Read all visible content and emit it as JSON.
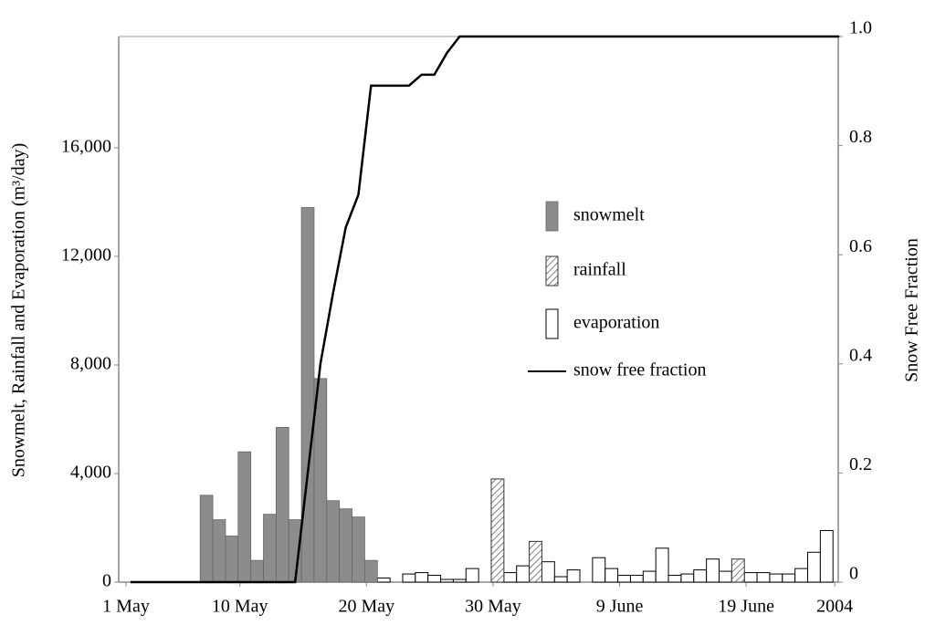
{
  "chart_data": {
    "type": "bar",
    "y_label": "Snowmelt, Rainfall and Evaporation (m³/day)",
    "y2_label": "Snow Free Fraction",
    "categories": [
      "1 May",
      null,
      null,
      null,
      null,
      null,
      null,
      null,
      null,
      "10 May",
      null,
      null,
      null,
      null,
      null,
      null,
      null,
      null,
      null,
      "20 May",
      null,
      null,
      null,
      null,
      null,
      null,
      null,
      null,
      null,
      "30 May",
      null,
      null,
      null,
      null,
      null,
      null,
      null,
      null,
      null,
      "9 June",
      null,
      null,
      null,
      null,
      null,
      null,
      null,
      null,
      null,
      "19 June",
      null,
      null,
      null,
      null,
      null,
      null,
      "2004"
    ],
    "ylim": [
      0,
      20100
    ],
    "yticks": [
      0,
      {
        "value": 4000,
        "label": "4,000"
      },
      {
        "value": 8000,
        "label": "8,000"
      },
      {
        "value": 12000,
        "label": "12,000"
      },
      {
        "value": 16000,
        "label": "16,000"
      }
    ],
    "y2lim": [
      0,
      1
    ],
    "y2ticks": [
      0,
      0.2,
      0.4,
      0.6,
      0.8,
      {
        "value": 1,
        "label": "1.0"
      }
    ],
    "series": [
      {
        "name": "snowmelt",
        "color": "#8c8c8c",
        "values": [
          0,
          0,
          0,
          0,
          0,
          0,
          3200,
          2300,
          1700,
          4800,
          800,
          2500,
          5700,
          2300,
          13800,
          7500,
          3000,
          2700,
          2400,
          800,
          0,
          0,
          0,
          0,
          0,
          0,
          0,
          0,
          0,
          0,
          0,
          0,
          0,
          0,
          0,
          0,
          0,
          0,
          0,
          0,
          0,
          0,
          0,
          0,
          0,
          0,
          0,
          0,
          0,
          0,
          0,
          0,
          0,
          0,
          0,
          0,
          0
        ]
      },
      {
        "name": "rainfall",
        "color": "#d9d9d9",
        "values": [
          0,
          0,
          0,
          0,
          0,
          0,
          0,
          0,
          0,
          0,
          0,
          0,
          0,
          0,
          0,
          0,
          0,
          0,
          0,
          0,
          0,
          0,
          0,
          0,
          0,
          0,
          0,
          0,
          0,
          3800,
          0,
          0,
          1500,
          0,
          0,
          0,
          0,
          0,
          0,
          0,
          0,
          0,
          0,
          0,
          0,
          0,
          0,
          0,
          850,
          0,
          0,
          0,
          0,
          0,
          0,
          0,
          0
        ]
      },
      {
        "name": "evaporation",
        "color": "#ffffff",
        "values": [
          0,
          0,
          0,
          0,
          0,
          0,
          0,
          0,
          0,
          0,
          0,
          0,
          0,
          0,
          0,
          0,
          0,
          0,
          450,
          100,
          150,
          0,
          300,
          350,
          250,
          100,
          100,
          500,
          0,
          100,
          350,
          600,
          400,
          750,
          200,
          450,
          0,
          900,
          500,
          250,
          250,
          400,
          1250,
          250,
          300,
          450,
          850,
          400,
          400,
          350,
          350,
          300,
          300,
          500,
          1100,
          1900,
          0
        ]
      },
      {
        "name": "snow free fraction",
        "color": "#000000",
        "type": "line",
        "axis": "y2",
        "values": [
          0,
          0,
          0,
          0,
          0,
          0,
          0,
          0,
          0,
          0,
          0,
          0,
          0,
          0,
          0.2,
          0.4,
          0.53,
          0.65,
          0.71,
          0.91,
          0.91,
          0.91,
          0.91,
          0.93,
          0.93,
          0.97,
          1,
          1,
          1,
          1,
          1,
          1,
          1,
          1,
          1,
          1,
          1,
          1,
          1,
          1,
          1,
          1,
          1,
          1,
          1,
          1,
          1,
          1,
          1,
          1,
          1,
          1,
          1,
          1,
          1,
          1,
          1
        ]
      }
    ]
  }
}
